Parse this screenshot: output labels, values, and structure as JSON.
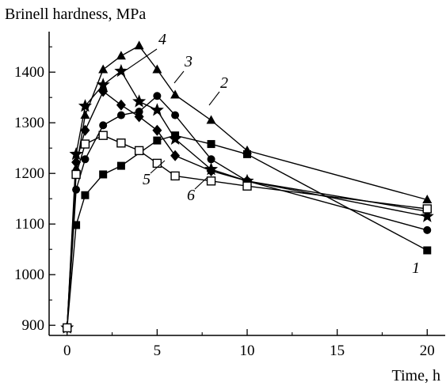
{
  "chart_data": {
    "type": "line",
    "ylabel": "Brinell hardness, MPa",
    "xlabel": "Time, h",
    "xlim": [
      -1,
      21
    ],
    "ylim": [
      880,
      1480
    ],
    "xticks": [
      0,
      5,
      10,
      15,
      20
    ],
    "yticks": [
      900,
      1000,
      1100,
      1200,
      1300,
      1400
    ],
    "grid": false,
    "series": [
      {
        "name": "1",
        "marker": "square-filled",
        "x": [
          0,
          0.5,
          1,
          2,
          3,
          5,
          6,
          8,
          10,
          20
        ],
        "y": [
          895,
          1098,
          1157,
          1198,
          1215,
          1265,
          1275,
          1258,
          1238,
          1048
        ]
      },
      {
        "name": "2",
        "marker": "circle",
        "x": [
          0,
          0.5,
          1,
          2,
          3,
          4,
          5,
          6,
          8,
          10,
          20
        ],
        "y": [
          895,
          1168,
          1228,
          1295,
          1315,
          1322,
          1353,
          1315,
          1228,
          1185,
          1088
        ]
      },
      {
        "name": "3",
        "marker": "triangle",
        "x": [
          0,
          0.5,
          1,
          2,
          3,
          4,
          5,
          6,
          8,
          10,
          20
        ],
        "y": [
          895,
          1210,
          1315,
          1405,
          1432,
          1452,
          1405,
          1355,
          1305,
          1245,
          1148
        ]
      },
      {
        "name": "4",
        "marker": "star",
        "x": [
          0,
          0.5,
          1,
          2,
          3,
          4,
          5,
          6,
          8,
          10,
          20
        ],
        "y": [
          895,
          1238,
          1333,
          1375,
          1402,
          1342,
          1325,
          1268,
          1208,
          1185,
          1115
        ]
      },
      {
        "name": "5",
        "marker": "diamond",
        "x": [
          0,
          0.5,
          1,
          2,
          3,
          4,
          5,
          6,
          8,
          10,
          20
        ],
        "y": [
          895,
          1222,
          1285,
          1362,
          1335,
          1312,
          1285,
          1235,
          1205,
          1185,
          1125
        ]
      },
      {
        "name": "6",
        "marker": "square-open",
        "x": [
          0,
          0.5,
          1,
          2,
          3,
          4,
          5,
          6,
          8,
          10,
          20
        ],
        "y": [
          895,
          1198,
          1258,
          1275,
          1260,
          1245,
          1220,
          1195,
          1185,
          1175,
          1130
        ]
      }
    ]
  }
}
